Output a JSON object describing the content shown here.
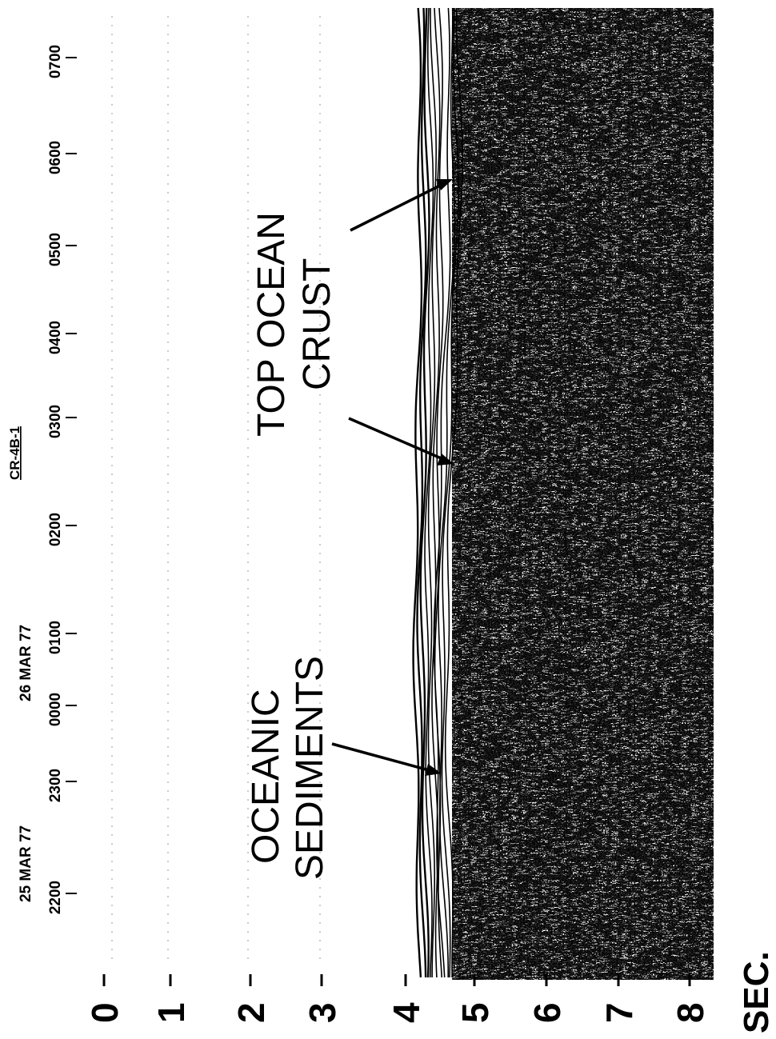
{
  "time_axis": {
    "tick_labels": [
      "2200",
      "2300",
      "0000",
      "0100",
      "0200",
      "0300",
      "0400",
      "0500",
      "0600",
      "0700"
    ],
    "dates": [
      "25 MAR 77",
      "26 MAR 77"
    ],
    "station": "CR-4B-1"
  },
  "depth_axis": {
    "tick_labels": [
      "0",
      "1",
      "2",
      "3",
      "4",
      "5",
      "6",
      "7",
      "8"
    ],
    "unit_label": "SEC."
  },
  "annotations": {
    "oceanic_sediments": [
      "OCEANIC",
      "SEDIMENTS"
    ],
    "top_ocean_crust": [
      "TOP OCEAN",
      "CRUST"
    ]
  },
  "colors": {
    "ink": "#000000",
    "paper": "#ffffff",
    "section_gray": "#8a8a8a"
  }
}
